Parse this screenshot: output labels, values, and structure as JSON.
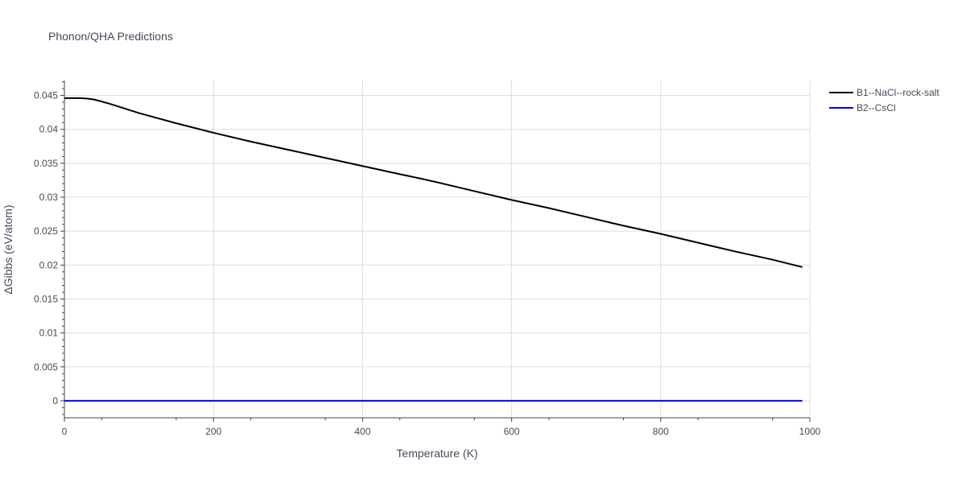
{
  "chart_data": {
    "type": "line",
    "title": "Phonon/QHA Predictions",
    "xlabel": "Temperature (K)",
    "ylabel": "ΔGibbs (eV/atom)",
    "xlim": [
      0,
      1000
    ],
    "ylim": [
      -0.0025,
      0.0472
    ],
    "x_ticks": [
      0,
      200,
      400,
      600,
      800,
      1000
    ],
    "x_tick_labels": [
      "0",
      "200",
      "400",
      "600",
      "800",
      "1000"
    ],
    "y_ticks": [
      0,
      0.005,
      0.01,
      0.015,
      0.02,
      0.025,
      0.03,
      0.035,
      0.04,
      0.045
    ],
    "y_tick_labels": [
      "0",
      "0.005",
      "0.01",
      "0.015",
      "0.02",
      "0.025",
      "0.03",
      "0.035",
      "0.04",
      "0.045"
    ],
    "grid": true,
    "legend_position": "top-right",
    "series": [
      {
        "name": "B1--NaCl--rock-salt",
        "color": "#000000",
        "x": [
          0,
          10,
          20,
          30,
          40,
          50,
          60,
          80,
          100,
          150,
          200,
          250,
          300,
          350,
          400,
          450,
          480,
          500,
          550,
          600,
          650,
          700,
          750,
          800,
          850,
          900,
          950,
          990
        ],
        "y": [
          0.0446,
          0.0446,
          0.0446,
          0.04455,
          0.0444,
          0.0441,
          0.0438,
          0.0431,
          0.0424,
          0.0409,
          0.0395,
          0.0382,
          0.037,
          0.0358,
          0.0346,
          0.0334,
          0.0327,
          0.0322,
          0.0309,
          0.0296,
          0.0284,
          0.0271,
          0.0258,
          0.0246,
          0.0233,
          0.022,
          0.0208,
          0.0197
        ]
      },
      {
        "name": "B2--CsCl",
        "color": "#0000ff",
        "x": [
          0,
          990
        ],
        "y": [
          0,
          0
        ]
      }
    ]
  }
}
